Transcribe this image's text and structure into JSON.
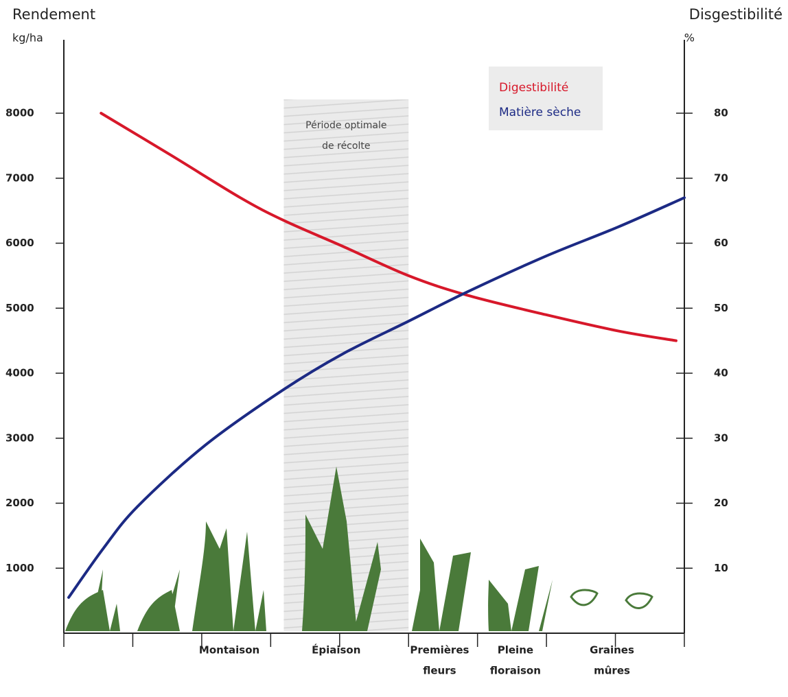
{
  "chart_data": {
    "type": "line",
    "y_title": "Rendement",
    "y_unit": "kg/ha",
    "y2_title": "Disgestibilité",
    "y2_unit": "%",
    "xlim": [
      0,
      9
    ],
    "xticks": [
      0,
      1,
      2,
      3,
      4,
      5,
      6,
      7,
      8,
      9
    ],
    "ylim": [
      0,
      9000
    ],
    "yticks": [
      1000,
      2000,
      3000,
      4000,
      5000,
      6000,
      7000,
      8000
    ],
    "y2lim": [
      0,
      90
    ],
    "y2ticks": [
      10,
      20,
      30,
      40,
      50,
      60,
      70,
      80
    ],
    "stages": [
      {
        "x": 2.4,
        "label": [
          "Montaison"
        ]
      },
      {
        "x": 3.95,
        "label": [
          "Épiaison"
        ]
      },
      {
        "x": 5.45,
        "label": [
          "Premières",
          "fleurs"
        ]
      },
      {
        "x": 6.55,
        "label": [
          "Pleine",
          "floraison"
        ]
      },
      {
        "x": 7.95,
        "label": [
          "Graines",
          "mûres"
        ]
      }
    ],
    "highlight": {
      "x": [
        3.19,
        5.0
      ],
      "label": [
        "Période optimale",
        "de récolte"
      ]
    },
    "series": [
      {
        "name": "Digestibilité",
        "color": "#d7182a",
        "axis": "y2",
        "x": [
          0.54,
          1.56,
          2.56,
          3.19,
          4.05,
          5.0,
          5.85,
          6.99,
          8.04,
          8.88
        ],
        "values": [
          80,
          73.5,
          67,
          63.5,
          59.5,
          55,
          52,
          49,
          46.5,
          45
        ]
      },
      {
        "name": "Matière sèche",
        "color": "#1c2a84",
        "axis": "y",
        "x": [
          0.07,
          0.57,
          1.07,
          2.06,
          3.19,
          4.05,
          5.0,
          5.85,
          6.99,
          8.04,
          9.0
        ],
        "values": [
          550,
          1300,
          1950,
          2900,
          3750,
          4300,
          4800,
          5250,
          5800,
          6250,
          6700
        ]
      }
    ]
  }
}
